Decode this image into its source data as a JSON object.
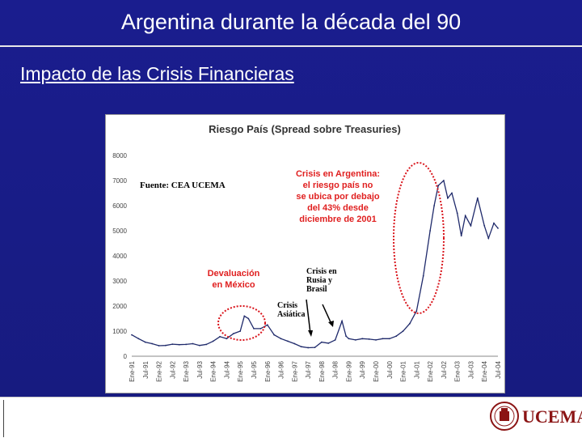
{
  "slide": {
    "title": "Argentina durante la década del 90",
    "subtitle": "Impacto de las Crisis Financieras",
    "logo_text": "UCEMA"
  },
  "chart_data": {
    "type": "line",
    "title": "Riesgo País (Spread sobre Treasuries)",
    "source": "Fuente: CEA UCEMA",
    "xlabel": "",
    "ylabel": "",
    "ylim": [
      0,
      8000
    ],
    "yticks": [
      0,
      1000,
      2000,
      3000,
      4000,
      5000,
      6000,
      7000,
      8000
    ],
    "xticks": [
      "Ene-91",
      "Jul-91",
      "Ene-92",
      "Jul-92",
      "Ene-93",
      "Jul-93",
      "Ene-94",
      "Jul-94",
      "Ene-95",
      "Jul-95",
      "Ene-96",
      "Jul-96",
      "Ene-97",
      "Jul-97",
      "Ene-98",
      "Jul-98",
      "Ene-99",
      "Jul-99",
      "Ene-00",
      "Jul-00",
      "Ene-01",
      "Jul-01",
      "Ene-02",
      "Jul-02",
      "Ene-03",
      "Jul-03",
      "Ene-04",
      "Jul-04"
    ],
    "colors": {
      "line": "#1f2a6b",
      "annotation_red": "#e02020",
      "ellipse": "#d9141b"
    },
    "series": [
      {
        "values": [
          [
            0,
            850
          ],
          [
            0.5,
            700
          ],
          [
            1,
            560
          ],
          [
            1.5,
            500
          ],
          [
            2,
            420
          ],
          [
            2.5,
            430
          ],
          [
            3,
            480
          ],
          [
            3.5,
            460
          ],
          [
            4,
            470
          ],
          [
            4.5,
            500
          ],
          [
            5,
            430
          ],
          [
            5.5,
            470
          ],
          [
            6,
            600
          ],
          [
            6.5,
            780
          ],
          [
            7,
            700
          ],
          [
            7.5,
            900
          ],
          [
            8,
            1000
          ],
          [
            8.3,
            1600
          ],
          [
            8.6,
            1500
          ],
          [
            9,
            1100
          ],
          [
            9.5,
            1100
          ],
          [
            10,
            1250
          ],
          [
            10.5,
            850
          ],
          [
            11,
            700
          ],
          [
            11.5,
            600
          ],
          [
            12,
            500
          ],
          [
            12.5,
            380
          ],
          [
            13,
            340
          ],
          [
            13.5,
            350
          ],
          [
            14,
            560
          ],
          [
            14.5,
            520
          ],
          [
            15,
            650
          ],
          [
            15.5,
            1400
          ],
          [
            15.8,
            800
          ],
          [
            16,
            700
          ],
          [
            16.5,
            650
          ],
          [
            17,
            700
          ],
          [
            17.5,
            680
          ],
          [
            18,
            650
          ],
          [
            18.5,
            700
          ],
          [
            19,
            700
          ],
          [
            19.5,
            800
          ],
          [
            20,
            1000
          ],
          [
            20.5,
            1300
          ],
          [
            21,
            1800
          ],
          [
            21.5,
            3200
          ],
          [
            22,
            5000
          ],
          [
            22.3,
            6000
          ],
          [
            22.6,
            6800
          ],
          [
            23,
            7000
          ],
          [
            23.3,
            6300
          ],
          [
            23.6,
            6500
          ],
          [
            24,
            5700
          ],
          [
            24.3,
            4800
          ],
          [
            24.6,
            5600
          ],
          [
            25,
            5200
          ],
          [
            25.5,
            6300
          ],
          [
            26,
            5200
          ],
          [
            26.3,
            4700
          ],
          [
            26.7,
            5300
          ],
          [
            27,
            5100
          ]
        ]
      }
    ],
    "annotations": [
      {
        "id": "crisis-argentina",
        "text": [
          "Crisis en Argentina:",
          "el riesgo país no",
          "se ubica por debajo",
          "del 43% desde",
          "diciembre de 2001"
        ]
      },
      {
        "id": "devaluacion",
        "text": [
          "Devaluación",
          "en México"
        ]
      },
      {
        "id": "rusia-brasil",
        "text": [
          "Crisis en",
          "Rusia y",
          "Brasil"
        ]
      },
      {
        "id": "asiatica",
        "text": [
          "Crisis",
          "Asiática"
        ]
      }
    ]
  }
}
